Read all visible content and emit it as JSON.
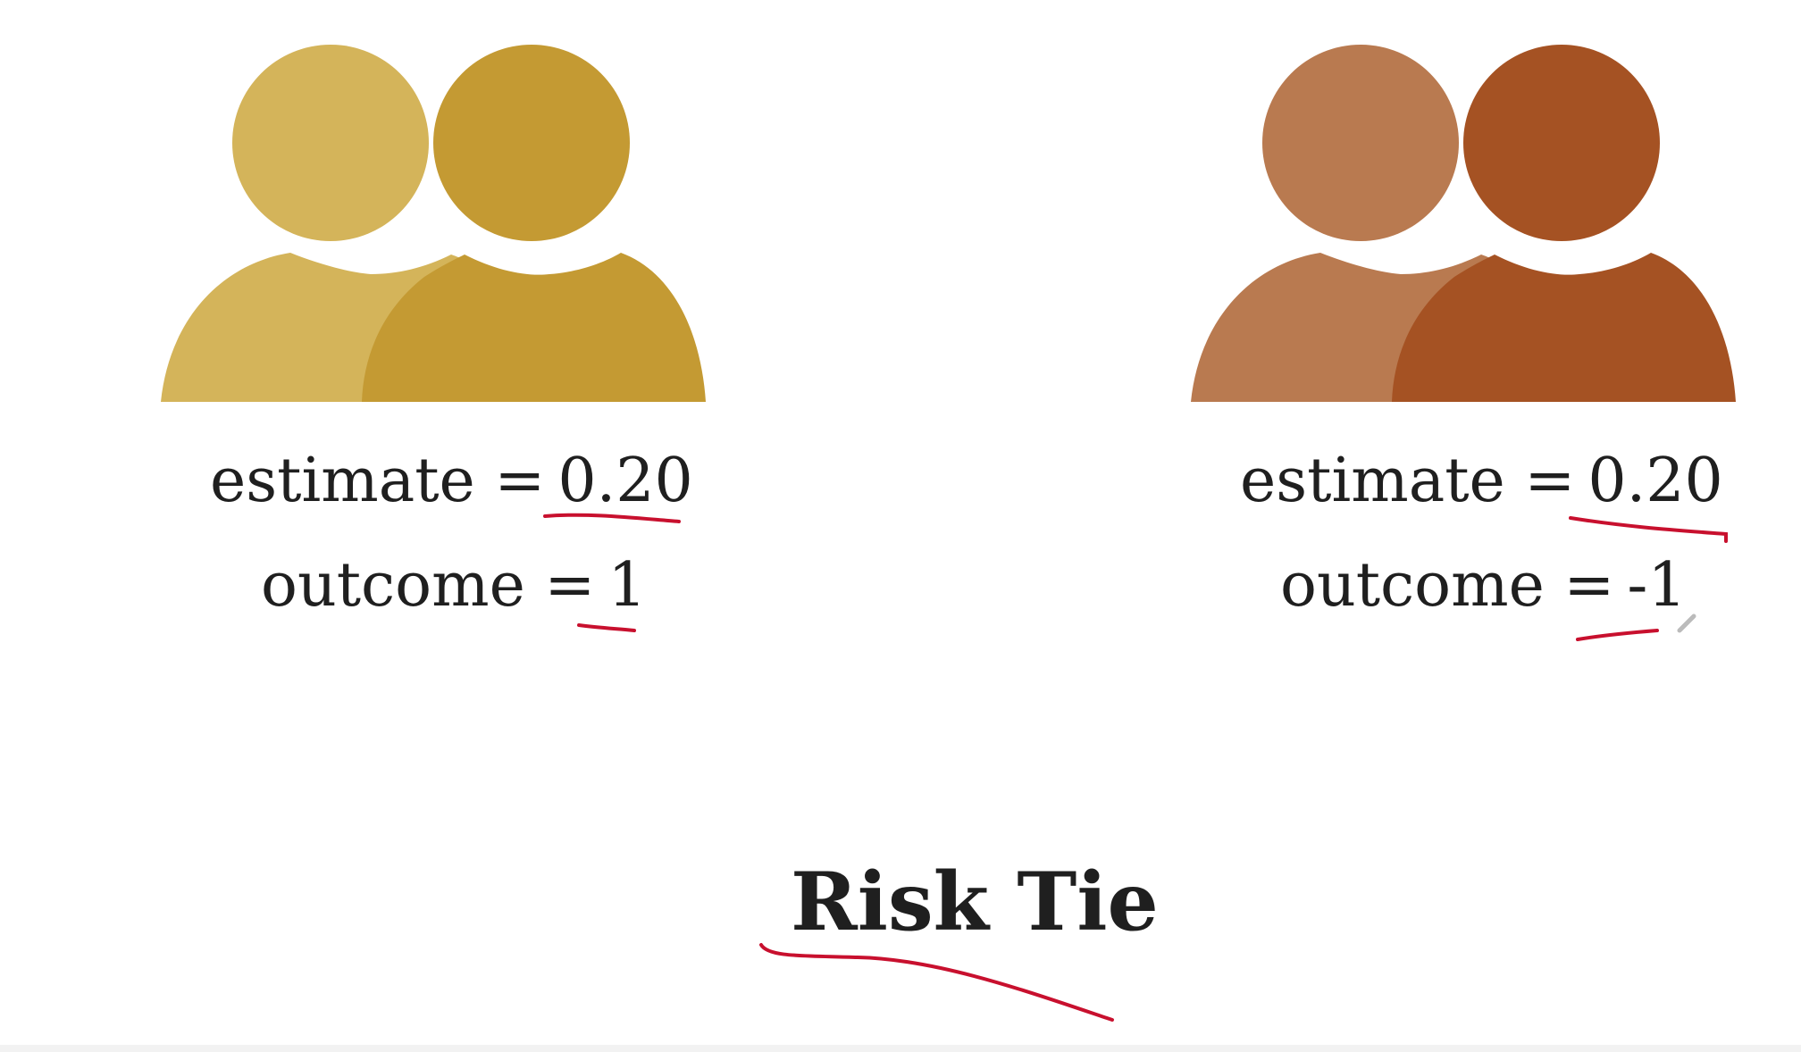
{
  "left_group": {
    "estimate_label": "estimate =",
    "estimate_value": "0.20",
    "outcome_label": "outcome =",
    "outcome_value": "1",
    "colors": {
      "back": "#d4b45a",
      "front": "#c49a33"
    }
  },
  "right_group": {
    "estimate_label": "estimate =",
    "estimate_value": "0.20",
    "outcome_label": "outcome =",
    "outcome_value": "-1",
    "colors": {
      "back": "#b97a50",
      "front": "#a55223"
    }
  },
  "title": "Risk Tie",
  "annotation_color": "#c8102e"
}
